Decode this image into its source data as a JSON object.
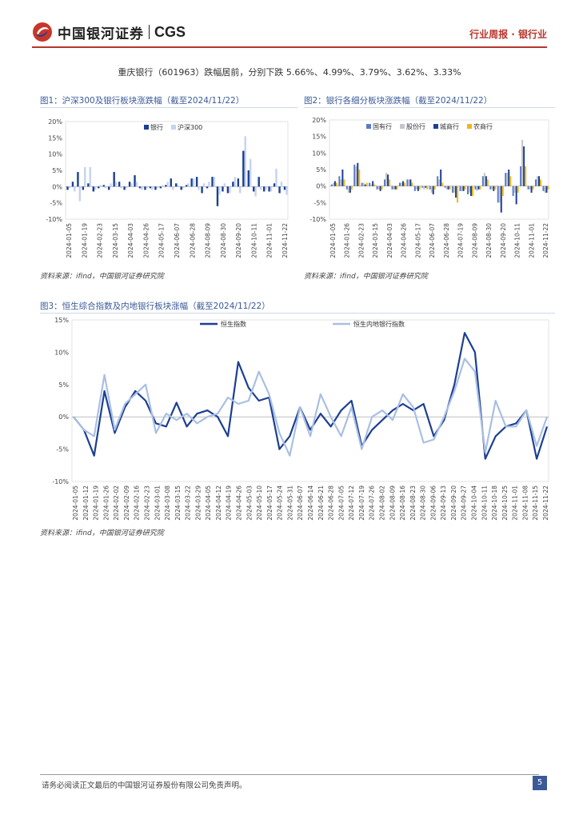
{
  "header": {
    "brand_cn": "中国银河证券",
    "brand_en": "CGS",
    "section": "行业周报 · 银行业"
  },
  "intro_text": "重庆银行（601963）跌幅居前，分别下跌 5.66%、4.99%、3.79%、3.62%、3.33%",
  "footer": {
    "disclaimer": "请务必阅读正文最后的中国银河证券股份有限公司免责声明。",
    "page": "5"
  },
  "colors": {
    "dark": "#1c3f93",
    "light": "#a9bfe3",
    "mid": "#5b7cc4",
    "gray": "#b4b4b4",
    "gold": "#f2b619",
    "red": "#b8362c"
  },
  "chart_data": [
    {
      "id": "fig1",
      "type": "bar",
      "caption": "图1：沪深300及银行板块涨跌幅（截至2024/11/22）",
      "source": "资料来源：ifind，中国银河证券研究院",
      "ylim": [
        -10,
        20
      ],
      "yticks": [
        "20%",
        "15%",
        "10%",
        "5%",
        "0%",
        "-5%",
        "-10%"
      ],
      "xlabels": [
        "2024-01-05",
        "2024-01-19",
        "2024-02-23",
        "2024-03-15",
        "2024-04-03",
        "2024-04-26",
        "2024-05-17",
        "2024-06-07",
        "2024-06-28",
        "2024-08-09",
        "2024-08-30",
        "2024-09-20",
        "2024-10-11",
        "2024-11-01",
        "2024-11-22"
      ],
      "series": [
        {
          "name": "银行",
          "color": "#1c3f93",
          "values": [
            -1,
            1.5,
            4.5,
            -1,
            1,
            -1.5,
            -0.5,
            0.5,
            -1,
            4.5,
            1.5,
            -1,
            1.5,
            3.5,
            -0.5,
            -1,
            -0.5,
            -1,
            -0.5,
            0.5,
            2.5,
            1,
            -1,
            0.5,
            2.5,
            3,
            -2,
            -0.5,
            3,
            -6,
            -1.5,
            -2,
            1.5,
            2.5,
            11,
            5,
            -1.5,
            3,
            -1.5,
            -1.5,
            1,
            -2,
            -1
          ]
        },
        {
          "name": "沪深300",
          "color": "#c5d3ee",
          "values": [
            -0.5,
            -1.5,
            -4.5,
            6,
            6,
            -1,
            0.5,
            -0.5,
            1,
            1.5,
            -0.5,
            -0.5,
            1,
            1.5,
            -1,
            -0.5,
            -1,
            -0.5,
            0.5,
            1.5,
            -1,
            0.5,
            -0.5,
            1,
            2.5,
            -1,
            1,
            1.5,
            3,
            -2.5,
            1,
            -2,
            3,
            -2,
            15.5,
            8.5,
            -3,
            -1,
            -1,
            -1.5,
            5.5,
            1.5,
            -2.5
          ]
        }
      ]
    },
    {
      "id": "fig2",
      "type": "bar",
      "caption": "图2：银行各细分板块涨跌幅（截至2024/11/22）",
      "source": "资料来源：ifind，中国银河证券研究院",
      "ylim": [
        -10,
        20
      ],
      "yticks": [
        "20%",
        "15%",
        "10%",
        "5%",
        "0%",
        "-5%",
        "-10%"
      ],
      "xlabels": [
        "2024-01-05",
        "2024-01-26",
        "2024-02-23",
        "2024-03-15",
        "2024-04-03",
        "2024-04-26",
        "2024-05-17",
        "2024-06-07",
        "2024-06-28",
        "2024-07-19",
        "2024-08-09",
        "2024-08-30",
        "2024-09-20",
        "2024-10-11",
        "2024-11-01",
        "2024-11-22"
      ],
      "series": [
        {
          "name": "国有行",
          "color": "#5b7cc4",
          "values": [
            0.5,
            3,
            -1,
            6.5,
            1,
            1,
            -1,
            2,
            -1,
            1,
            2,
            -1.5,
            -0.5,
            -1,
            3,
            -0.5,
            -2,
            -1.5,
            -2.5,
            -1,
            3,
            -1,
            -5,
            4,
            -3,
            6,
            -1,
            2,
            -1.5
          ]
        },
        {
          "name": "股份行",
          "color": "#c2c6cc",
          "values": [
            1,
            2,
            -2,
            6,
            1,
            0.5,
            -1,
            4,
            -1,
            1,
            2,
            -1,
            -1,
            -2,
            2,
            -1,
            -2,
            -1.5,
            -2,
            -1.5,
            4,
            -1,
            -5,
            4,
            -2,
            14,
            -1,
            3,
            -2
          ]
        },
        {
          "name": "城商行",
          "color": "#1c3f93",
          "values": [
            1.5,
            5,
            -2,
            7,
            0.5,
            1.5,
            -1.5,
            3.5,
            -1,
            1.5,
            2,
            -1.5,
            -0.5,
            -2.5,
            5,
            -1,
            -3.5,
            -1.5,
            -3,
            -1,
            3,
            -1.5,
            -8,
            5,
            -5.5,
            12,
            -2,
            3,
            -2
          ]
        },
        {
          "name": "农商行",
          "color": "#f2b619",
          "values": [
            1,
            2,
            -1,
            5,
            1,
            0.5,
            -1,
            2,
            -1,
            1,
            1,
            -1,
            -1,
            -1,
            1,
            -1,
            -5,
            -1,
            -3,
            -1,
            2,
            -1,
            -3,
            3,
            -2,
            6,
            -1,
            2,
            -1
          ]
        }
      ]
    },
    {
      "id": "fig3",
      "type": "line",
      "caption": "图3：恒生综合指数及内地银行板块涨幅（截至2024/11/22）",
      "source": "资料来源：ifind，中国银河证券研究院",
      "ylim": [
        -10,
        15
      ],
      "yticks": [
        "15%",
        "10%",
        "5%",
        "0%",
        "-5%",
        "-10%"
      ],
      "xlabels": [
        "2024-01-05",
        "2024-01-12",
        "2024-01-19",
        "2024-01-26",
        "2024-02-02",
        "2024-02-09",
        "2024-02-16",
        "2024-02-23",
        "2024-03-01",
        "2024-03-08",
        "2024-03-15",
        "2024-03-22",
        "2024-03-29",
        "2024-04-05",
        "2024-04-12",
        "2024-04-19",
        "2024-04-26",
        "2024-05-03",
        "2024-05-10",
        "2024-05-17",
        "2024-05-24",
        "2024-05-31",
        "2024-06-07",
        "2024-06-14",
        "2024-06-21",
        "2024-06-28",
        "2024-07-05",
        "2024-07-12",
        "2024-07-19",
        "2024-07-26",
        "2024-08-02",
        "2024-08-09",
        "2024-08-16",
        "2024-08-23",
        "2024-08-30",
        "2024-09-06",
        "2024-09-13",
        "2024-09-20",
        "2024-09-27",
        "2024-10-04",
        "2024-10-11",
        "2024-10-18",
        "2024-10-25",
        "2024-11-01",
        "2024-11-08",
        "2024-11-15",
        "2024-11-22"
      ],
      "series": [
        {
          "name": "恒生指数",
          "color": "#1c3f93",
          "values": [
            0,
            -2,
            -6,
            4,
            -2.5,
            1.5,
            4,
            2.5,
            -1,
            -1.5,
            2.2,
            -1.5,
            0.5,
            1,
            0,
            -3,
            8.5,
            4.5,
            2.5,
            3,
            -5,
            -3,
            1.5,
            -2,
            0.5,
            -1.5,
            1,
            2.5,
            -4.5,
            -2,
            -0.5,
            1,
            2,
            1,
            2,
            -3,
            -0.5,
            5,
            13,
            10,
            -6.5,
            -3,
            -1.5,
            -1,
            1,
            -6.5,
            -1.5
          ]
        },
        {
          "name": "恒生内地银行指数",
          "color": "#a9bfe3",
          "values": [
            0,
            -2,
            -3,
            6.5,
            -2,
            2,
            3.5,
            5,
            -2.5,
            0.5,
            -0.5,
            0.5,
            -1,
            0,
            0.5,
            3,
            2,
            2.5,
            7,
            3.5,
            -2.5,
            -6,
            1.5,
            -3,
            3.5,
            0,
            -3,
            1.5,
            -5,
            0,
            1,
            -0.5,
            3.5,
            1.5,
            -4,
            -3.5,
            0,
            4,
            9,
            7,
            -5.5,
            2.5,
            -1.5,
            -1.5,
            1,
            -4.5,
            0
          ]
        }
      ]
    }
  ]
}
